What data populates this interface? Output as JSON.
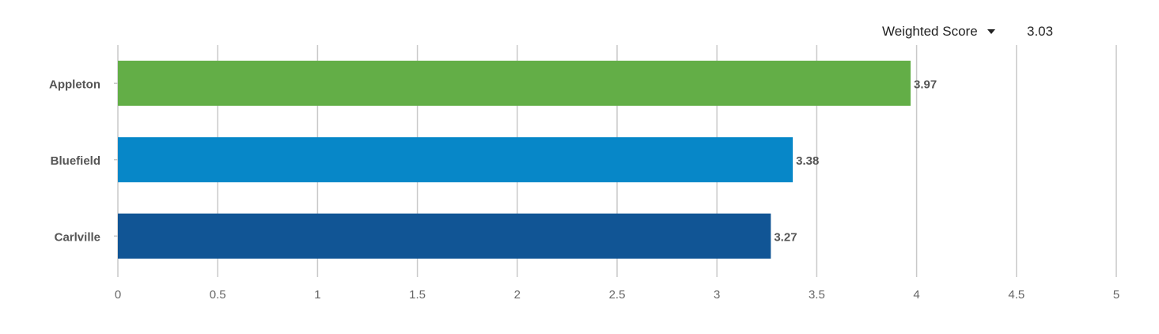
{
  "metric_selector": {
    "label": "Weighted Score",
    "icon": "caret-down-icon"
  },
  "summary_value": "3.03",
  "chart_data": {
    "type": "bar",
    "orientation": "horizontal",
    "categories": [
      "Appleton",
      "Bluefield",
      "Carlville"
    ],
    "values": [
      3.97,
      3.38,
      3.27
    ],
    "value_labels": [
      "3.97",
      "3.38",
      "3.27"
    ],
    "colors": [
      "#63ae47",
      "#0787c8",
      "#115595"
    ],
    "xlim": [
      0,
      5
    ],
    "xticks": [
      0,
      0.5,
      1,
      1.5,
      2,
      2.5,
      3,
      3.5,
      4,
      4.5,
      5
    ],
    "xtick_labels": [
      "0",
      "0.5",
      "1",
      "1.5",
      "2",
      "2.5",
      "3",
      "3.5",
      "4",
      "4.5",
      "5"
    ],
    "grid": true,
    "title": "",
    "xlabel": "",
    "ylabel": ""
  }
}
